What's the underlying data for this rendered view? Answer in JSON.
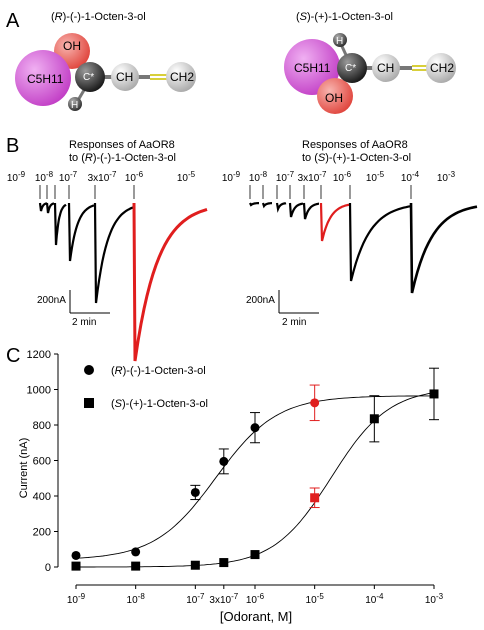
{
  "panels": {
    "a": "A",
    "b": "B",
    "c": "C"
  },
  "panel_a": {
    "left_title_prefix": "(",
    "left_title_italic": "R",
    "left_title_rest": ")-(-)-1-Octen-3-ol",
    "right_title_prefix": "(",
    "right_title_italic": "S",
    "right_title_rest": ")-(+)-1-Octen-3-ol",
    "atoms": {
      "oh": "OH",
      "c5": "C5H11",
      "c_star": "C*",
      "ch": "CH",
      "ch2": "CH2",
      "h": "H"
    },
    "colors": {
      "oxygen": "#e8605a",
      "c5h11": "#d35fd6",
      "carbon_dark": "#303030",
      "carbon_light": "#cfcfcf",
      "double_bond": "#d8cf3a"
    }
  },
  "panel_b": {
    "left_title_line1": "Responses of AaOR8",
    "left_title_line2_prefix": "to (",
    "left_title_line2_italic": "R",
    "left_title_line2_rest": ")-(-)-1-Octen-3-ol",
    "right_title_line1": "Responses of AaOR8",
    "right_title_line2_prefix": "to (",
    "right_title_line2_italic": "S",
    "right_title_line2_rest": ")-(+)-1-Octen-3-ol",
    "left_conc_labels": [
      "10-9",
      "10-8",
      "10-7",
      "3x10-7",
      "10-6",
      "10-5"
    ],
    "right_conc_labels": [
      "10-9",
      "10-8",
      "10-7",
      "3x10-7",
      "10-6",
      "10-5",
      "10-4",
      "10-3"
    ],
    "scale_current": "200nA",
    "scale_time": "2 min",
    "highlight_color": "#e01e1e"
  },
  "chart_data": {
    "type": "scatter",
    "title": "",
    "xlabel": "[Odorant, M]",
    "ylabel": "Current (nA)",
    "x_scale": "log",
    "xlim": [
      1e-09,
      0.001
    ],
    "ylim": [
      0,
      1200
    ],
    "x_ticks": [
      {
        "value": 1e-09,
        "label": "10-9"
      },
      {
        "value": 1e-08,
        "label": "10-8"
      },
      {
        "value": 1e-07,
        "label": "10-7"
      },
      {
        "value": 3e-07,
        "label": "3x10-7"
      },
      {
        "value": 1e-06,
        "label": "10-6"
      },
      {
        "value": 1e-05,
        "label": "10-5"
      },
      {
        "value": 0.0001,
        "label": "10-4"
      },
      {
        "value": 0.001,
        "label": "10-3"
      }
    ],
    "y_ticks": [
      0,
      200,
      400,
      600,
      800,
      1000,
      1200
    ],
    "legend_position": "top-left",
    "series": [
      {
        "name_prefix": "(",
        "name_italic": "R",
        "name_rest": ")-(-)-1-Octen-3-ol",
        "marker": "circle",
        "x": [
          1e-09,
          1e-08,
          1e-07,
          3e-07,
          1e-06,
          1e-05
        ],
        "y": [
          65,
          85,
          420,
          595,
          785,
          925
        ],
        "err": [
          0,
          0,
          40,
          70,
          85,
          100
        ],
        "colors": [
          "#000000",
          "#000000",
          "#000000",
          "#000000",
          "#000000",
          "#e01e1e"
        ],
        "fit": {
          "bottom": 40,
          "top": 965,
          "ec50": 2.2e-07,
          "hill": 0.85
        }
      },
      {
        "name_prefix": "(",
        "name_italic": "S",
        "name_rest": ")-(+)-1-Octen-3-ol",
        "marker": "square",
        "x": [
          1e-09,
          1e-08,
          1e-07,
          3e-07,
          1e-06,
          1e-05,
          0.0001,
          0.001
        ],
        "y": [
          5,
          5,
          10,
          25,
          70,
          390,
          835,
          975
        ],
        "err": [
          0,
          0,
          0,
          0,
          0,
          55,
          130,
          145
        ],
        "colors": [
          "#000000",
          "#000000",
          "#000000",
          "#000000",
          "#000000",
          "#e01e1e",
          "#000000",
          "#000000"
        ],
        "fit": {
          "bottom": 0,
          "top": 1010,
          "ec50": 1.9e-05,
          "hill": 0.9
        }
      }
    ]
  }
}
